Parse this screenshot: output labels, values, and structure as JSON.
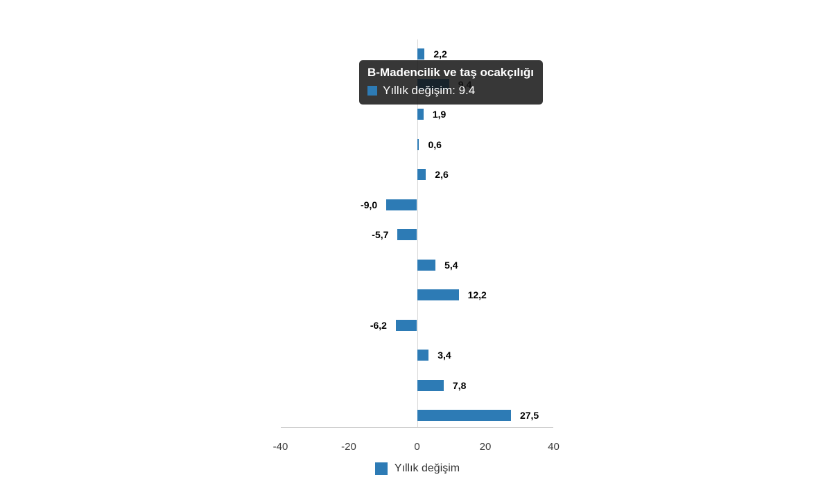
{
  "colors": {
    "bar": "#2d7bb5",
    "tooltip_bg": "rgba(20,20,20,0.85)",
    "value_label": "#000000",
    "axis_text": "#3c3c3c",
    "gridline": "#d6d6d6",
    "axis_line": "#cccccc"
  },
  "tooltip": {
    "title": "B-Madencilik ve taş ocakçılığı",
    "label": "Yıllık değişim: 9.4"
  },
  "legend": {
    "label": "Yıllık değişim"
  },
  "chart_data": {
    "type": "bar",
    "orientation": "horizontal",
    "title": "",
    "xlabel": "",
    "ylabel": "",
    "xlim": [
      -40,
      40
    ],
    "xticks": [
      "-40",
      "-20",
      "0",
      "20",
      "40"
    ],
    "xtick_values": [
      -40,
      -20,
      0,
      20,
      40
    ],
    "grid": "zero-line-only",
    "legend_position": "bottom",
    "series": [
      {
        "name": "Yıllık değişim",
        "values": [
          2.2,
          9.4,
          1.9,
          0.6,
          2.6,
          -9.0,
          -5.7,
          5.4,
          12.2,
          -6.2,
          3.4,
          7.8,
          27.5
        ],
        "value_labels": [
          "2,2",
          "9,4",
          "1,9",
          "0,6",
          "2,6",
          "-9,0",
          "-5,7",
          "5,4",
          "12,2",
          "-6,2",
          "3,4",
          "7,8",
          "27,5"
        ]
      }
    ],
    "hovered_bar_index": 1,
    "hovered_bar_value": "9.4",
    "hovered_bar_category": "B-Madencilik ve taş ocakçılığı"
  }
}
